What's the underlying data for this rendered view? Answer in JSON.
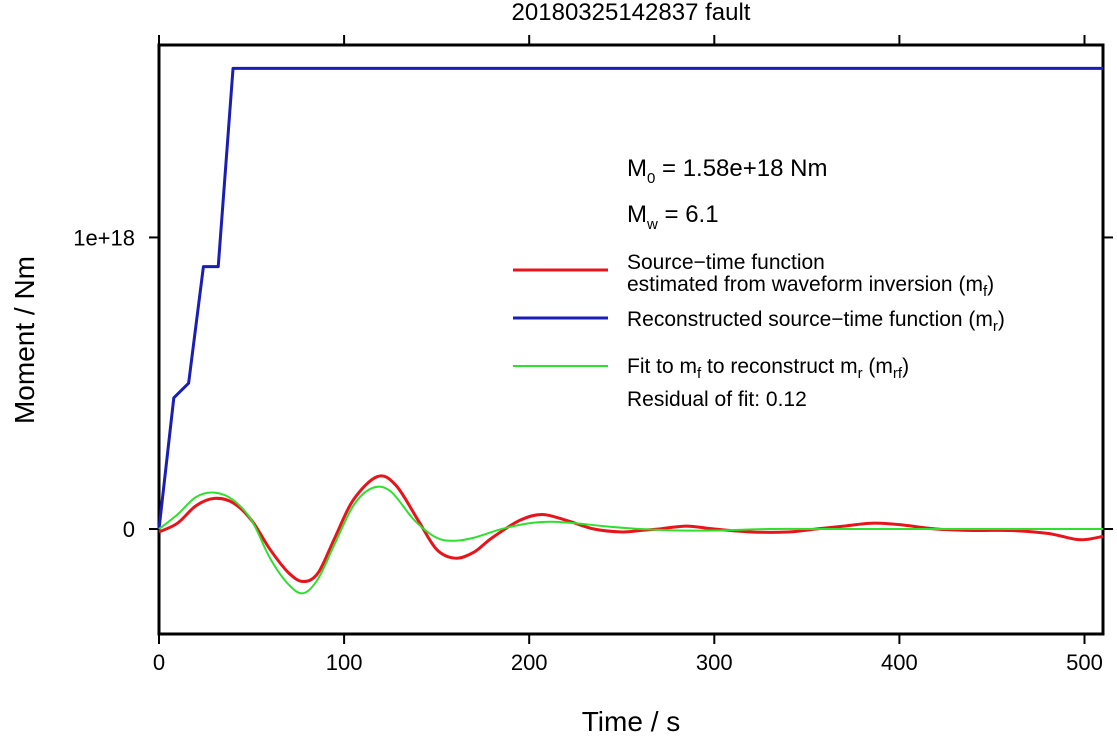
{
  "chart_data": {
    "type": "line",
    "title": "20180325142837 fault",
    "xlabel": "Time / s",
    "ylabel": "Moment / Nm",
    "xlim": [
      0,
      510
    ],
    "ylim": [
      -3.6e+17,
      1.66e+18
    ],
    "x_ticks": [
      0,
      100,
      200,
      300,
      400,
      500
    ],
    "x_tick_labels": [
      "0",
      "100",
      "200",
      "300",
      "400",
      "500"
    ],
    "y_ticks": [
      0,
      1e+18
    ],
    "y_tick_labels": [
      "0",
      "1e+18"
    ],
    "grid": false,
    "legend_position": "upper-right",
    "annotations": {
      "m0": {
        "main": "M",
        "sub": "0",
        "rest": " = 1.58e+18 Nm"
      },
      "mw": {
        "main": "M",
        "sub": "w",
        "rest": " = 6.1"
      },
      "residual": "Residual of fit: 0.12"
    },
    "legend": [
      {
        "key": "mf",
        "color": "#e8141b",
        "line1": "Source−time function",
        "line2_pre": "estimated from waveform inversion (m",
        "line2_sub": "f",
        "line2_post": ")"
      },
      {
        "key": "mr",
        "color": "#1a1eb4",
        "line1_pre": "Reconstructed source−time function (m",
        "line1_sub": "r",
        "line1_post": ")"
      },
      {
        "key": "mrf",
        "color": "#2ee02e",
        "p1": "Fit to m",
        "s1": "f",
        "p2": " to reconstruct m",
        "s2": "r",
        "p3": " (m",
        "s3": "rf",
        "p4": ")"
      }
    ],
    "series": [
      {
        "key": "mr",
        "color": "#1a1eb4",
        "x": [
          0,
          8,
          16,
          24,
          32,
          40,
          510
        ],
        "y": [
          0,
          4.5e+17,
          5e+17,
          9e+17,
          9e+17,
          1.58e+18,
          1.58e+18
        ]
      },
      {
        "key": "mf",
        "color": "#e8141b",
        "x": [
          0,
          10,
          20,
          30,
          40,
          50,
          60,
          70,
          78,
          86,
          95,
          105,
          118,
          128,
          140,
          150,
          160,
          170,
          180,
          195,
          207,
          220,
          235,
          250,
          260,
          270,
          285,
          300,
          320,
          340,
          355,
          370,
          385,
          400,
          420,
          440,
          460,
          480,
          495,
          502,
          510
        ],
        "y": [
          -1e+16,
          2e+16,
          8e+16,
          1.05e+17,
          9e+16,
          3e+16,
          -7e+16,
          -1.5e+17,
          -1.8e+17,
          -1.5e+17,
          -3e+16,
          1e+17,
          1.8e+17,
          1.5e+17,
          3e+16,
          -7e+16,
          -1e+17,
          -8e+16,
          -3e+16,
          3e+16,
          5e+16,
          3e+16,
          0.0,
          -1e+16,
          -5000000000000000.0,
          0.0,
          1e+16,
          0.0,
          -1e+16,
          -1e+16,
          0.0,
          1e+16,
          2e+16,
          1.5e+16,
          0.0,
          -5000000000000000.0,
          -5000000000000000.0,
          -1.5e+16,
          -3.5e+16,
          -3.5e+16,
          -2.5e+16
        ]
      },
      {
        "key": "mrf",
        "color": "#2ee02e",
        "x": [
          0,
          10,
          20,
          30,
          40,
          50,
          60,
          70,
          78,
          86,
          95,
          105,
          115,
          125,
          138,
          150,
          160,
          170,
          185,
          200,
          212,
          225,
          240,
          260,
          280,
          300,
          330,
          360,
          400,
          450,
          510
        ],
        "y": [
          0,
          5e+16,
          1.1e+17,
          1.25e+17,
          1e+17,
          3e+16,
          -1e+17,
          -1.9e+17,
          -2.2e+17,
          -1.7e+17,
          -5e+16,
          8e+16,
          1.4e+17,
          1.3e+17,
          3e+16,
          -3e+16,
          -4e+16,
          -3e+16,
          0.0,
          2e+16,
          2.5e+16,
          2e+16,
          1e+16,
          0.0,
          -5000000000000000.0,
          -5000000000000000.0,
          0.0,
          0.0,
          0.0,
          0.0,
          0.0
        ]
      }
    ]
  }
}
